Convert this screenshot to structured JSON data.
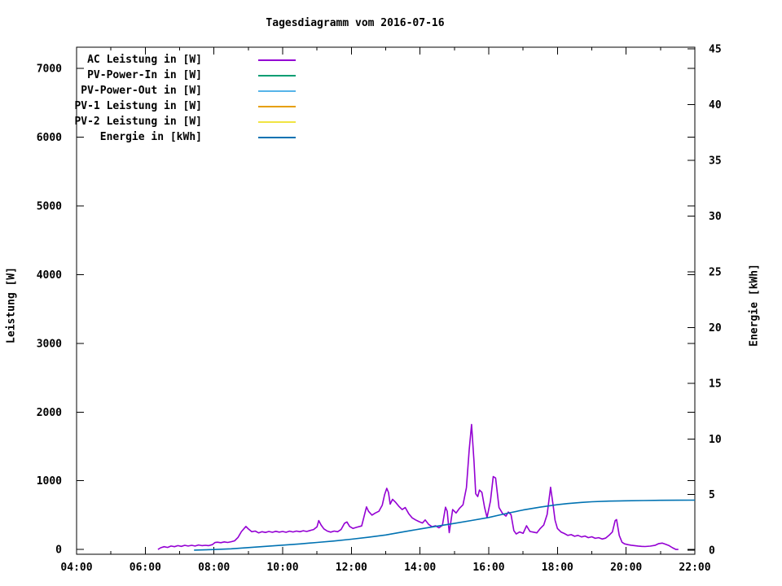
{
  "title": "Tagesdiagramm vom 2016-07-16",
  "axes": {
    "left_label": "Leistung [W]",
    "right_label": "Energie [kWh]"
  },
  "chart_data": {
    "type": "line",
    "title": "Tagesdiagramm vom 2016-07-16",
    "x_axis": {
      "kind": "time-of-day",
      "range_hours": [
        4,
        22
      ],
      "major_tick_hours": [
        4,
        6,
        8,
        10,
        12,
        14,
        16,
        18,
        20,
        22
      ],
      "major_tick_labels": [
        "04:00",
        "06:00",
        "08:00",
        "10:00",
        "12:00",
        "14:00",
        "16:00",
        "18:00",
        "20:00",
        "22:00"
      ],
      "minor_tick_hours": [
        5,
        7,
        9,
        11,
        13,
        15,
        17,
        19,
        21
      ]
    },
    "y_left": {
      "label": "Leistung [W]",
      "ticks": [
        0,
        1000,
        2000,
        3000,
        4000,
        5000,
        6000,
        7000
      ],
      "range": [
        -70,
        7310
      ]
    },
    "y_right": {
      "label": "Energie [kWh]",
      "ticks": [
        0,
        5,
        10,
        15,
        20,
        25,
        30,
        35,
        40,
        45
      ],
      "range": [
        -0.35,
        45.15
      ]
    },
    "grid": "off",
    "legend_position": "top-left-inside",
    "series": [
      {
        "name": "AC Leistung in [W]",
        "color": "#9400d3",
        "axis": "left",
        "points": [
          [
            6.37,
            0
          ],
          [
            6.45,
            25
          ],
          [
            6.55,
            40
          ],
          [
            6.65,
            30
          ],
          [
            6.75,
            50
          ],
          [
            6.85,
            40
          ],
          [
            6.95,
            55
          ],
          [
            7.05,
            45
          ],
          [
            7.15,
            60
          ],
          [
            7.25,
            50
          ],
          [
            7.35,
            60
          ],
          [
            7.45,
            50
          ],
          [
            7.55,
            65
          ],
          [
            7.65,
            55
          ],
          [
            7.75,
            60
          ],
          [
            7.85,
            55
          ],
          [
            7.95,
            70
          ],
          [
            8.03,
            100
          ],
          [
            8.1,
            105
          ],
          [
            8.2,
            98
          ],
          [
            8.3,
            110
          ],
          [
            8.4,
            102
          ],
          [
            8.5,
            112
          ],
          [
            8.6,
            125
          ],
          [
            8.7,
            175
          ],
          [
            8.8,
            260
          ],
          [
            8.93,
            335
          ],
          [
            9.0,
            300
          ],
          [
            9.1,
            258
          ],
          [
            9.2,
            268
          ],
          [
            9.3,
            242
          ],
          [
            9.4,
            258
          ],
          [
            9.5,
            248
          ],
          [
            9.6,
            262
          ],
          [
            9.7,
            250
          ],
          [
            9.8,
            264
          ],
          [
            9.9,
            252
          ],
          [
            10.0,
            262
          ],
          [
            10.1,
            250
          ],
          [
            10.2,
            266
          ],
          [
            10.3,
            254
          ],
          [
            10.4,
            268
          ],
          [
            10.5,
            258
          ],
          [
            10.6,
            272
          ],
          [
            10.7,
            262
          ],
          [
            10.8,
            276
          ],
          [
            10.9,
            290
          ],
          [
            11.0,
            330
          ],
          [
            11.05,
            420
          ],
          [
            11.12,
            355
          ],
          [
            11.2,
            300
          ],
          [
            11.3,
            268
          ],
          [
            11.4,
            252
          ],
          [
            11.5,
            268
          ],
          [
            11.6,
            258
          ],
          [
            11.7,
            290
          ],
          [
            11.8,
            380
          ],
          [
            11.87,
            400
          ],
          [
            11.95,
            335
          ],
          [
            12.05,
            305
          ],
          [
            12.15,
            322
          ],
          [
            12.3,
            342
          ],
          [
            12.44,
            620
          ],
          [
            12.5,
            555
          ],
          [
            12.6,
            500
          ],
          [
            12.7,
            530
          ],
          [
            12.8,
            555
          ],
          [
            12.9,
            645
          ],
          [
            12.97,
            800
          ],
          [
            13.03,
            890
          ],
          [
            13.08,
            830
          ],
          [
            13.13,
            660
          ],
          [
            13.2,
            730
          ],
          [
            13.28,
            690
          ],
          [
            13.38,
            630
          ],
          [
            13.48,
            580
          ],
          [
            13.57,
            610
          ],
          [
            13.67,
            520
          ],
          [
            13.77,
            460
          ],
          [
            13.87,
            430
          ],
          [
            13.97,
            405
          ],
          [
            14.07,
            385
          ],
          [
            14.15,
            430
          ],
          [
            14.25,
            365
          ],
          [
            14.35,
            330
          ],
          [
            14.45,
            345
          ],
          [
            14.55,
            315
          ],
          [
            14.65,
            350
          ],
          [
            14.74,
            615
          ],
          [
            14.79,
            555
          ],
          [
            14.85,
            245
          ],
          [
            14.95,
            580
          ],
          [
            15.05,
            530
          ],
          [
            15.15,
            600
          ],
          [
            15.25,
            650
          ],
          [
            15.35,
            900
          ],
          [
            15.43,
            1450
          ],
          [
            15.5,
            1820
          ],
          [
            15.57,
            1280
          ],
          [
            15.62,
            810
          ],
          [
            15.68,
            770
          ],
          [
            15.73,
            865
          ],
          [
            15.8,
            830
          ],
          [
            15.88,
            610
          ],
          [
            15.95,
            465
          ],
          [
            16.05,
            705
          ],
          [
            16.13,
            1060
          ],
          [
            16.2,
            1040
          ],
          [
            16.3,
            610
          ],
          [
            16.4,
            525
          ],
          [
            16.5,
            485
          ],
          [
            16.57,
            545
          ],
          [
            16.65,
            505
          ],
          [
            16.73,
            275
          ],
          [
            16.8,
            225
          ],
          [
            16.9,
            255
          ],
          [
            17.0,
            235
          ],
          [
            17.1,
            345
          ],
          [
            17.2,
            262
          ],
          [
            17.3,
            252
          ],
          [
            17.4,
            242
          ],
          [
            17.5,
            305
          ],
          [
            17.6,
            355
          ],
          [
            17.7,
            510
          ],
          [
            17.8,
            905
          ],
          [
            17.87,
            655
          ],
          [
            17.93,
            425
          ],
          [
            18.0,
            305
          ],
          [
            18.1,
            255
          ],
          [
            18.2,
            232
          ],
          [
            18.3,
            205
          ],
          [
            18.4,
            215
          ],
          [
            18.5,
            192
          ],
          [
            18.6,
            205
          ],
          [
            18.7,
            182
          ],
          [
            18.8,
            195
          ],
          [
            18.9,
            172
          ],
          [
            19.0,
            185
          ],
          [
            19.1,
            162
          ],
          [
            19.2,
            172
          ],
          [
            19.3,
            152
          ],
          [
            19.4,
            165
          ],
          [
            19.5,
            205
          ],
          [
            19.6,
            255
          ],
          [
            19.68,
            420
          ],
          [
            19.72,
            435
          ],
          [
            19.8,
            205
          ],
          [
            19.88,
            105
          ],
          [
            19.95,
            82
          ],
          [
            20.05,
            70
          ],
          [
            20.15,
            62
          ],
          [
            20.25,
            55
          ],
          [
            20.35,
            50
          ],
          [
            20.45,
            45
          ],
          [
            20.55,
            42
          ],
          [
            20.7,
            48
          ],
          [
            20.85,
            62
          ],
          [
            20.95,
            85
          ],
          [
            21.05,
            92
          ],
          [
            21.15,
            75
          ],
          [
            21.25,
            55
          ],
          [
            21.35,
            25
          ],
          [
            21.45,
            0
          ],
          [
            21.52,
            0
          ]
        ]
      },
      {
        "name": "PV-Power-In in [W]",
        "color": "#009e73",
        "axis": "left",
        "points": []
      },
      {
        "name": "PV-Power-Out in [W]",
        "color": "#56b4e9",
        "axis": "left",
        "points": []
      },
      {
        "name": "PV-1 Leistung in [W]",
        "color": "#e69f00",
        "axis": "left",
        "points": []
      },
      {
        "name": "PV-2 Leistung in [W]",
        "color": "#f0e442",
        "axis": "left",
        "points": []
      },
      {
        "name": "Energie in [kWh]",
        "color": "#0072b2",
        "axis": "right",
        "points": [
          [
            7.42,
            0.02
          ],
          [
            8.0,
            0.07
          ],
          [
            8.5,
            0.14
          ],
          [
            9.0,
            0.25
          ],
          [
            9.5,
            0.36
          ],
          [
            10.0,
            0.47
          ],
          [
            10.5,
            0.58
          ],
          [
            11.0,
            0.71
          ],
          [
            11.5,
            0.84
          ],
          [
            12.0,
            1.0
          ],
          [
            12.5,
            1.18
          ],
          [
            13.0,
            1.38
          ],
          [
            13.5,
            1.65
          ],
          [
            14.0,
            1.92
          ],
          [
            14.5,
            2.18
          ],
          [
            15.0,
            2.42
          ],
          [
            15.5,
            2.68
          ],
          [
            16.0,
            2.95
          ],
          [
            16.5,
            3.3
          ],
          [
            17.0,
            3.62
          ],
          [
            17.5,
            3.88
          ],
          [
            18.0,
            4.1
          ],
          [
            18.3,
            4.2
          ],
          [
            18.7,
            4.3
          ],
          [
            19.0,
            4.36
          ],
          [
            19.5,
            4.42
          ],
          [
            20.0,
            4.45
          ],
          [
            20.5,
            4.47
          ],
          [
            21.0,
            4.49
          ],
          [
            21.5,
            4.5
          ],
          [
            22.0,
            4.51
          ]
        ]
      }
    ]
  }
}
